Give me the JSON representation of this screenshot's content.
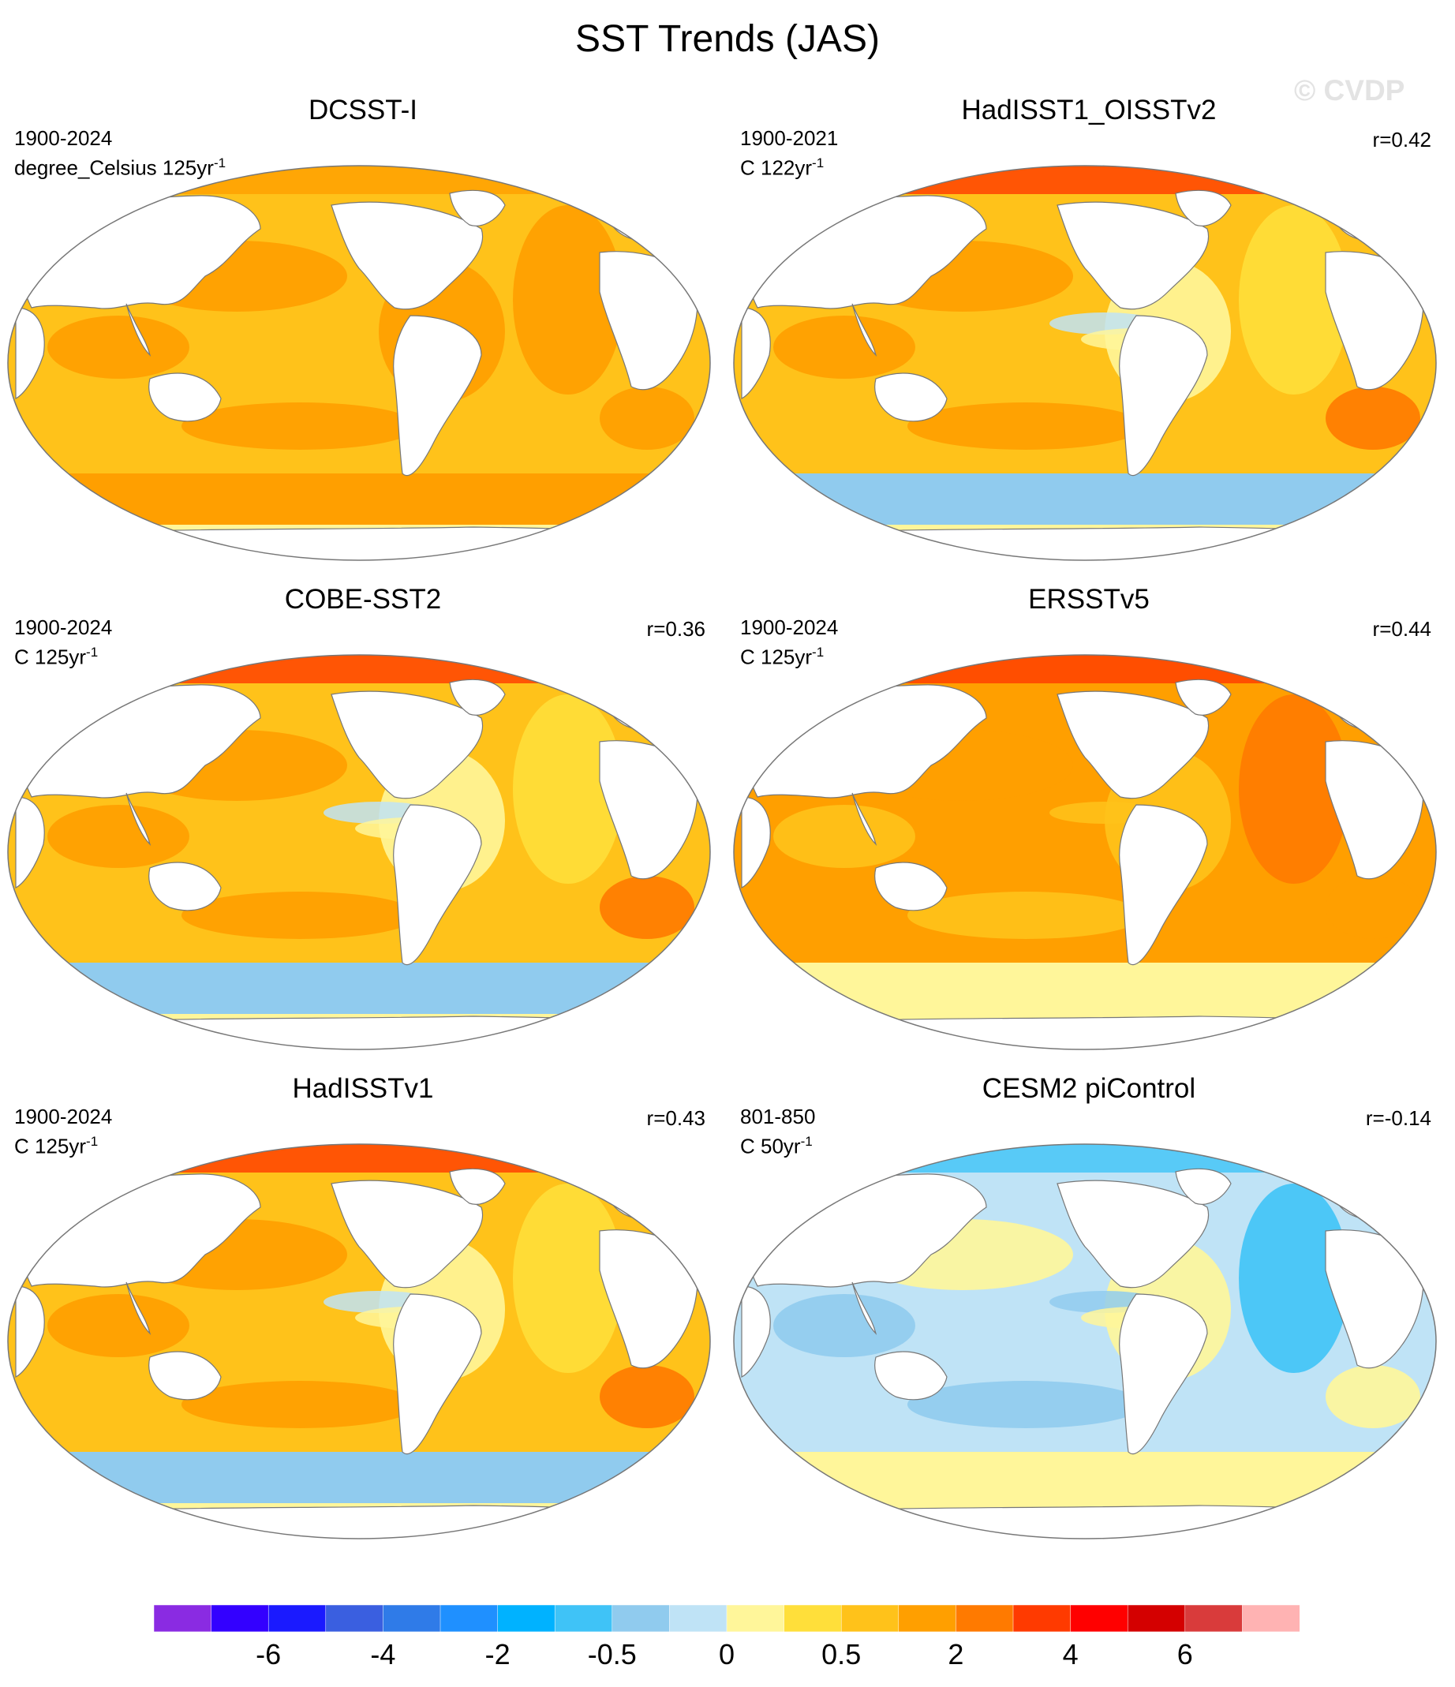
{
  "title": "SST Trends (JAS)",
  "watermark": "© CVDP",
  "panels": [
    {
      "name": "DCSST-I",
      "years": "1900-2024",
      "units": "degree_Celsius 125yr",
      "units_sup": "-1",
      "corr": "",
      "theme": "warm"
    },
    {
      "name": "HadISST1_OISSTv2",
      "years": "1900-2021",
      "units": "C 122yr",
      "units_sup": "-1",
      "corr": "r=0.42",
      "theme": "warm-mixed"
    },
    {
      "name": "COBE-SST2",
      "years": "1900-2024",
      "units": "C 125yr",
      "units_sup": "-1",
      "corr": "r=0.36",
      "theme": "warm-mixed"
    },
    {
      "name": "ERSSTv5",
      "years": "1900-2024",
      "units": "C 125yr",
      "units_sup": "-1",
      "corr": "r=0.44",
      "theme": "warm-strong"
    },
    {
      "name": "HadISSTv1",
      "years": "1900-2024",
      "units": "C 125yr",
      "units_sup": "-1",
      "corr": "r=0.43",
      "theme": "warm-mixed"
    },
    {
      "name": "CESM2 piControl",
      "years": "801-850",
      "units": "C 50yr",
      "units_sup": "-1",
      "corr": "r=-0.14",
      "theme": "cool"
    }
  ],
  "colorbar": {
    "colors": [
      "#8a2be2",
      "#3300ff",
      "#1a1aff",
      "#3a5fe0",
      "#2f7be8",
      "#1f90ff",
      "#00b2ff",
      "#3fc3f7",
      "#90cbee",
      "#bfe3f6",
      "#fff69a",
      "#ffdf3a",
      "#ffc21a",
      "#ff9f00",
      "#ff7a00",
      "#ff3a00",
      "#ff0000",
      "#d40000",
      "#d93b3b",
      "#ffb3b3"
    ],
    "labels": [
      "-6",
      "-4",
      "-2",
      "-0.5",
      "0",
      "0.5",
      "2",
      "4",
      "6"
    ],
    "label_boundaries": [
      2,
      4,
      6,
      8,
      10,
      12,
      14,
      16,
      18
    ]
  }
}
